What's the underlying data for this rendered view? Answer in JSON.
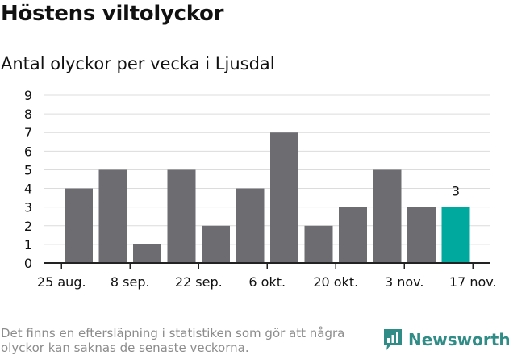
{
  "header": {
    "title": "Höstens viltolyckor",
    "subtitle": "Antal olyckor per vecka i Ljusdal"
  },
  "footnote": "Det finns en eftersläpning i statistiken som gör att några olyckor kan saknas de senaste veckorna.",
  "brand": {
    "name": "Newsworthy",
    "icon": "chart-bubble-icon"
  },
  "colors": {
    "bar": "#6d6c70",
    "highlight": "#00a99d",
    "grid": "#dcdcdc",
    "axis": "#222222"
  },
  "chart_data": {
    "type": "bar",
    "title": "Antal olyckor per vecka i Ljusdal",
    "xlabel": "",
    "ylabel": "",
    "ylim": [
      0,
      9
    ],
    "yticks": [
      0,
      1,
      2,
      3,
      4,
      5,
      6,
      7,
      8,
      9
    ],
    "grid": true,
    "xtick_labels": [
      "25 aug.",
      "8 sep.",
      "22 sep.",
      "6 okt.",
      "20 okt.",
      "3 nov.",
      "17 nov."
    ],
    "values": [
      4,
      5,
      1,
      5,
      2,
      4,
      7,
      2,
      3,
      5,
      3,
      3
    ],
    "highlight_index": 11,
    "highlight_label": "3"
  }
}
